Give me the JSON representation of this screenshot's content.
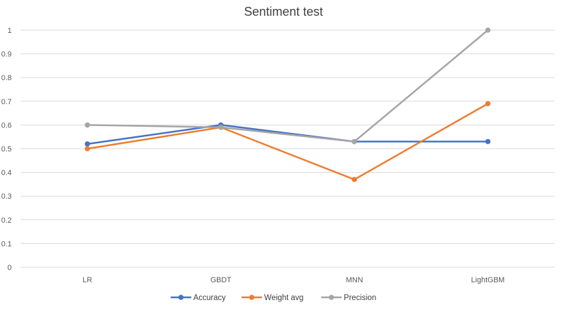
{
  "chart_data": {
    "type": "line",
    "title": "Sentiment test",
    "xlabel": "",
    "ylabel": "",
    "categories": [
      "LR",
      "GBDT",
      "MNN",
      "LightGBM"
    ],
    "yticks": [
      "0",
      "0.1",
      "0.2",
      "0.3",
      "0.4",
      "0.5",
      "0.6",
      "0.7",
      "0.8",
      "0.9",
      "1"
    ],
    "ylim": [
      0,
      1
    ],
    "grid": true,
    "legend_position": "bottom",
    "series": [
      {
        "name": "Accuracy",
        "color": "#4472c4",
        "values": [
          0.52,
          0.6,
          0.53,
          0.53
        ]
      },
      {
        "name": "Weight avg",
        "color": "#ed7d31",
        "values": [
          0.5,
          0.59,
          0.37,
          0.69
        ]
      },
      {
        "name": "Precision",
        "color": "#a5a5a5",
        "values": [
          0.6,
          0.59,
          0.53,
          1.0
        ]
      }
    ]
  }
}
